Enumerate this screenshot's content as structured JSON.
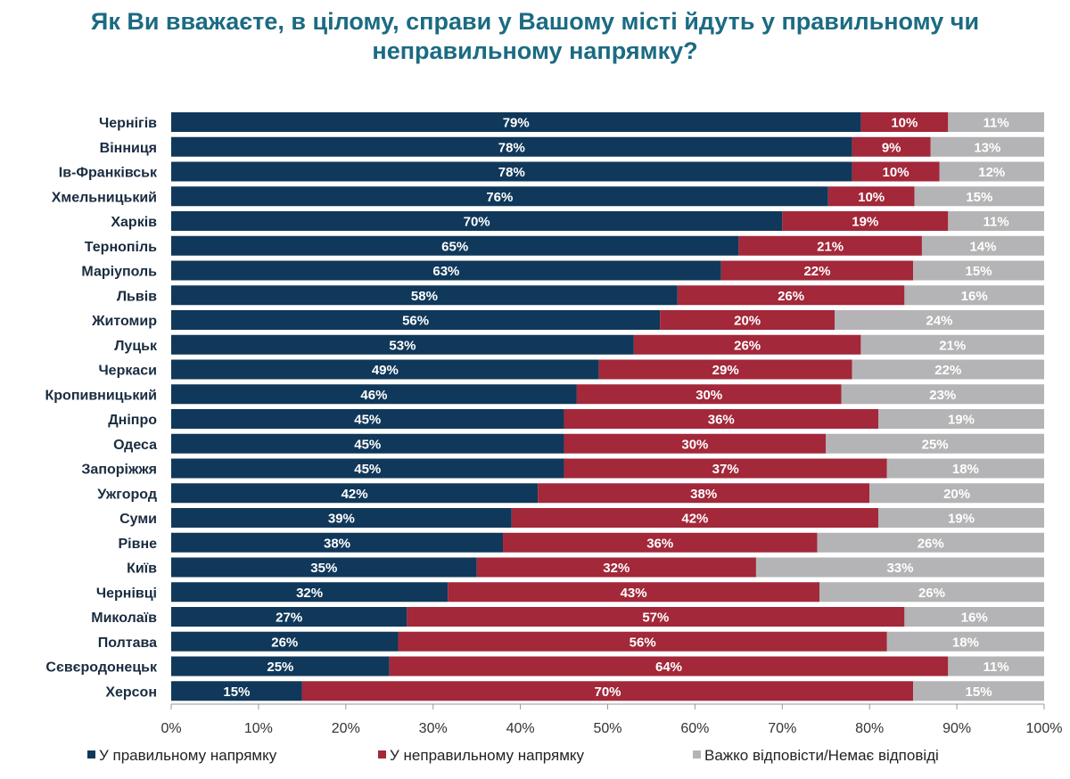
{
  "chart_data": {
    "type": "bar",
    "orientation": "horizontal",
    "stacked": true,
    "title": "Як Ви вважаєте, в цілому, справи у Вашому місті йдуть у правильному чи неправильному напрямку?",
    "categories": [
      "Чернігів",
      "Вінниця",
      "Ів-Франківськ",
      "Хмельницький",
      "Харків",
      "Тернопіль",
      "Маріуполь",
      "Львів",
      "Житомир",
      "Луцьк",
      "Черкаси",
      "Кропивницький",
      "Дніпро",
      "Одеса",
      "Запоріжжя",
      "Ужгород",
      "Суми",
      "Рівне",
      "Київ",
      "Чернівці",
      "Миколаїв",
      "Полтава",
      "Сєвєродонецьк",
      "Херсон"
    ],
    "series": [
      {
        "name": "У правильному напрямку",
        "color": "#10385a",
        "values": [
          79,
          78,
          78,
          76,
          70,
          65,
          63,
          58,
          56,
          53,
          49,
          46,
          45,
          45,
          45,
          42,
          39,
          38,
          35,
          32,
          27,
          26,
          25,
          15
        ]
      },
      {
        "name": "У неправильному напрямку",
        "color": "#a2283a",
        "values": [
          10,
          9,
          10,
          10,
          19,
          21,
          22,
          26,
          20,
          26,
          29,
          30,
          36,
          30,
          37,
          38,
          42,
          36,
          32,
          43,
          57,
          56,
          64,
          70
        ]
      },
      {
        "name": "Важко відповісти/Немає відповіді",
        "color": "#b4b4b6",
        "values": [
          11,
          13,
          12,
          15,
          11,
          14,
          15,
          16,
          24,
          21,
          22,
          23,
          19,
          25,
          18,
          20,
          19,
          26,
          33,
          26,
          16,
          18,
          11,
          15
        ]
      }
    ],
    "xlim": [
      0,
      100
    ],
    "xticks": [
      "0%",
      "10%",
      "20%",
      "30%",
      "40%",
      "50%",
      "60%",
      "70%",
      "80%",
      "90%",
      "100%"
    ],
    "value_suffix": "%",
    "legend_position": "bottom",
    "grid": false
  }
}
